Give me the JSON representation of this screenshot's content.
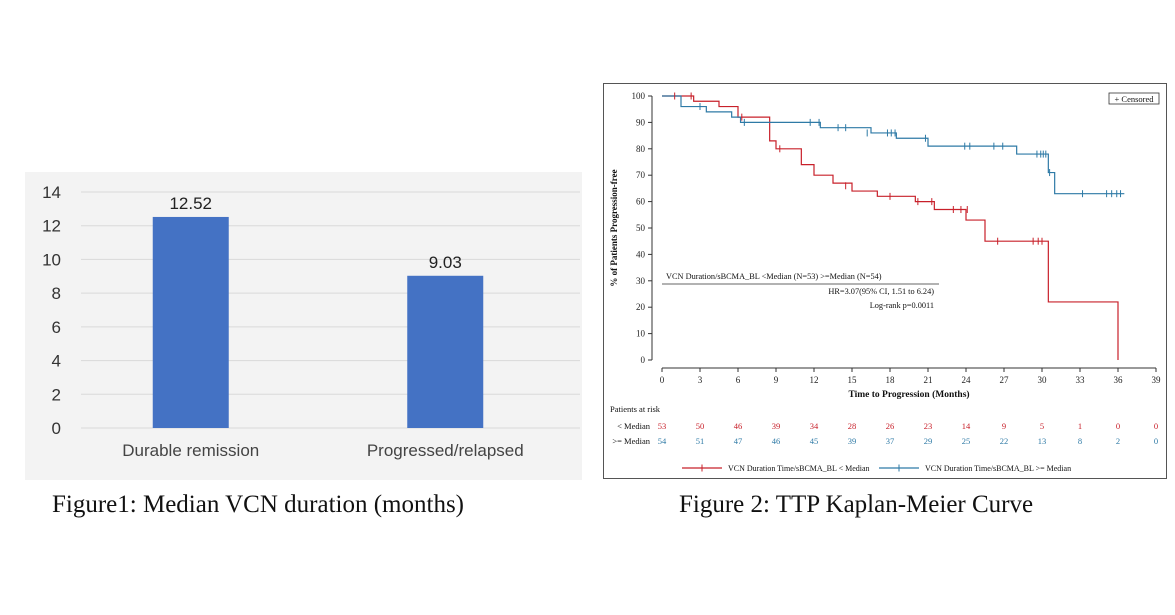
{
  "captions": {
    "fig1": "Figure1: Median VCN duration (months)",
    "fig2": "Figure 2: TTP Kaplan-Meier Curve"
  },
  "chart_data": [
    {
      "type": "bar",
      "categories": [
        "Durable remission",
        "Progressed/relapsed"
      ],
      "values": [
        12.52,
        9.03
      ],
      "data_labels": [
        "12.52",
        "9.03"
      ],
      "ylim": [
        0,
        14
      ],
      "yticks": [
        0,
        2,
        4,
        6,
        8,
        10,
        12,
        14
      ],
      "grid": true,
      "colors": {
        "bar": "#4472c4",
        "background": "#f3f3f3",
        "grid": "#d9d9d9"
      }
    },
    {
      "type": "line",
      "ylabel": "% of Patients Progression-free",
      "xlabel": "Time to Progression (Months)",
      "xlim": [
        0,
        39
      ],
      "ylim": [
        0,
        100
      ],
      "xticks": [
        0,
        3,
        6,
        9,
        12,
        15,
        18,
        21,
        24,
        27,
        30,
        33,
        36,
        39
      ],
      "yticks": [
        0,
        10,
        20,
        30,
        40,
        50,
        60,
        70,
        80,
        90,
        100
      ],
      "legend_box": "+ Censored",
      "series": [
        {
          "name": "VCN Duration Time/sBCMA_BL < Median",
          "color": "#c8202a",
          "steps": [
            [
              0,
              100
            ],
            [
              2.5,
              98
            ],
            [
              4.5,
              96
            ],
            [
              6,
              92
            ],
            [
              8.5,
              83
            ],
            [
              9,
              80
            ],
            [
              11,
              74
            ],
            [
              12,
              70
            ],
            [
              13.5,
              67
            ],
            [
              15,
              64
            ],
            [
              17,
              62
            ],
            [
              20,
              60
            ],
            [
              21.5,
              57
            ],
            [
              24,
              53
            ],
            [
              25.5,
              45
            ],
            [
              30.5,
              22
            ],
            [
              36,
              0
            ]
          ],
          "end_x": 36,
          "censored": [
            [
              1,
              100
            ],
            [
              2.3,
              100
            ],
            [
              6.3,
              92
            ],
            [
              9.3,
              80
            ],
            [
              14.5,
              66
            ],
            [
              18,
              62
            ],
            [
              20.2,
              60
            ],
            [
              21.3,
              60
            ],
            [
              23,
              57
            ],
            [
              23.6,
              57
            ],
            [
              24.1,
              57
            ],
            [
              26.5,
              45
            ],
            [
              29.3,
              45
            ],
            [
              29.7,
              45
            ],
            [
              30,
              45
            ]
          ]
        },
        {
          "name": "VCN Duration Time/sBCMA_BL >= Median",
          "color": "#2e7aa6",
          "steps": [
            [
              0,
              100
            ],
            [
              1.5,
              96
            ],
            [
              3.5,
              94
            ],
            [
              5.5,
              92
            ],
            [
              6.2,
              90
            ],
            [
              12.5,
              88
            ],
            [
              16.5,
              86
            ],
            [
              18.5,
              84
            ],
            [
              21,
              81
            ],
            [
              28,
              78
            ],
            [
              30.5,
              71
            ],
            [
              31,
              63
            ]
          ],
          "end_x": 36.5,
          "censored": [
            [
              3,
              96
            ],
            [
              6.5,
              90
            ],
            [
              11.7,
              90
            ],
            [
              12.4,
              90
            ],
            [
              13.9,
              88
            ],
            [
              14.5,
              88
            ],
            [
              16.2,
              86
            ],
            [
              17.8,
              86
            ],
            [
              18.1,
              86
            ],
            [
              18.4,
              86
            ],
            [
              20.8,
              84
            ],
            [
              23.9,
              81
            ],
            [
              24.3,
              81
            ],
            [
              26.2,
              81
            ],
            [
              26.9,
              81
            ],
            [
              29.6,
              78
            ],
            [
              29.9,
              78
            ],
            [
              30.1,
              78
            ],
            [
              30.3,
              78
            ],
            [
              30.6,
              71
            ],
            [
              33.2,
              63
            ],
            [
              35.1,
              63
            ],
            [
              35.5,
              63
            ],
            [
              35.9,
              63
            ],
            [
              36.2,
              63
            ]
          ]
        }
      ],
      "hr_table": {
        "header": "VCN Duration/sBCMA_BL   <Median (N=53)    >=Median (N=54)",
        "hr": "HR=3.07(95% CI, 1.51 to 6.24)",
        "logrank": "Log-rank p=0.0011"
      },
      "risk_table": {
        "title": "Patients at risk",
        "rows": [
          {
            "label": "< Median",
            "values": [
              "53",
              "50",
              "46",
              "39",
              "34",
              "28",
              "26",
              "23",
              "14",
              "9",
              "5",
              "1",
              "0",
              "0"
            ]
          },
          {
            "label": ">= Median",
            "values": [
              "54",
              "51",
              "47",
              "46",
              "45",
              "39",
              "37",
              "29",
              "25",
              "22",
              "13",
              "8",
              "2",
              "0"
            ]
          }
        ]
      }
    }
  ]
}
